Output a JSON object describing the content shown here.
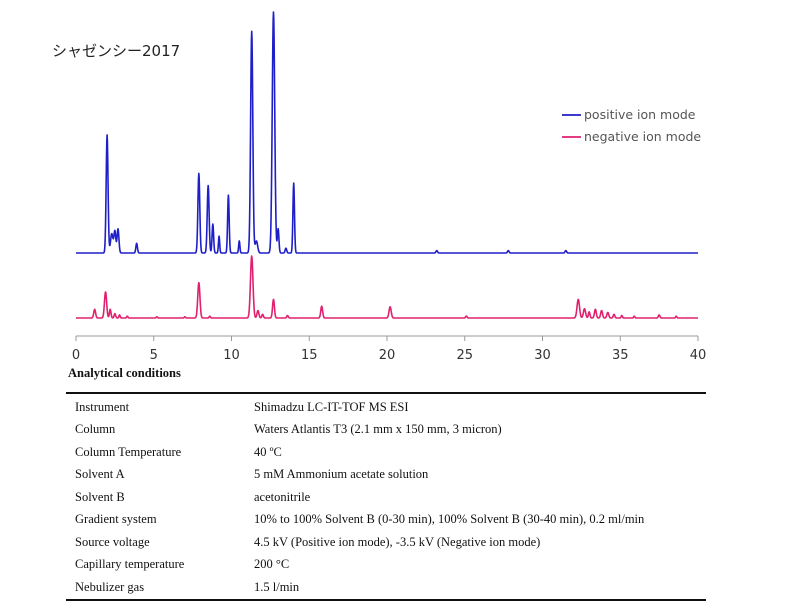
{
  "sample_title": "シャゼンシー2017",
  "chart_data": {
    "type": "line",
    "xlim": [
      0,
      40
    ],
    "xticks": [
      "0",
      "5",
      "10",
      "15",
      "20",
      "25",
      "30",
      "35",
      "40"
    ],
    "legend": {
      "placement": "top-right"
    },
    "grid": false,
    "series": [
      {
        "name": "positive ion mode",
        "color": "#1f1fc8",
        "baseline_pct": 0,
        "peaks": [
          [
            2.0,
            49,
            0.06
          ],
          [
            2.3,
            8,
            0.08
          ],
          [
            2.5,
            9,
            0.06
          ],
          [
            2.7,
            10,
            0.06
          ],
          [
            3.9,
            4,
            0.05
          ],
          [
            7.9,
            33,
            0.06
          ],
          [
            8.5,
            28,
            0.06
          ],
          [
            8.8,
            12,
            0.05
          ],
          [
            9.2,
            7,
            0.04
          ],
          [
            9.8,
            24,
            0.05
          ],
          [
            10.5,
            5,
            0.04
          ],
          [
            11.3,
            92,
            0.07
          ],
          [
            11.6,
            5,
            0.08
          ],
          [
            12.7,
            100,
            0.08
          ],
          [
            13.0,
            10,
            0.05
          ],
          [
            13.5,
            2,
            0.05
          ],
          [
            14.0,
            29,
            0.05
          ],
          [
            23.2,
            1,
            0.05
          ],
          [
            27.8,
            1,
            0.05
          ],
          [
            31.5,
            1,
            0.05
          ]
        ]
      },
      {
        "name": "negative ion mode",
        "color": "#e0206e",
        "peaks": [
          [
            1.2,
            14,
            0.06
          ],
          [
            1.9,
            42,
            0.07
          ],
          [
            2.2,
            14,
            0.05
          ],
          [
            2.5,
            7,
            0.05
          ],
          [
            2.8,
            5,
            0.04
          ],
          [
            3.3,
            3,
            0.04
          ],
          [
            5.2,
            2,
            0.04
          ],
          [
            7.0,
            2,
            0.04
          ],
          [
            7.9,
            57,
            0.07
          ],
          [
            8.6,
            3,
            0.04
          ],
          [
            11.3,
            100,
            0.08
          ],
          [
            11.7,
            12,
            0.06
          ],
          [
            12.0,
            6,
            0.05
          ],
          [
            12.7,
            30,
            0.06
          ],
          [
            13.6,
            4,
            0.05
          ],
          [
            15.8,
            19,
            0.06
          ],
          [
            20.2,
            18,
            0.07
          ],
          [
            25.1,
            3,
            0.05
          ],
          [
            32.3,
            30,
            0.08
          ],
          [
            32.7,
            15,
            0.07
          ],
          [
            33.0,
            10,
            0.05
          ],
          [
            33.4,
            14,
            0.06
          ],
          [
            33.8,
            12,
            0.06
          ],
          [
            34.2,
            9,
            0.06
          ],
          [
            34.6,
            6,
            0.05
          ],
          [
            35.1,
            4,
            0.04
          ],
          [
            35.9,
            3,
            0.04
          ],
          [
            37.5,
            5,
            0.05
          ],
          [
            38.6,
            3,
            0.04
          ]
        ]
      }
    ]
  },
  "conditions": {
    "heading": "Analytical conditions",
    "rows": [
      {
        "label": "Instrument",
        "value": "Shimadzu LC-IT-TOF MS ESI"
      },
      {
        "label": "Column",
        "value": "Waters Atlantis T3 (2.1 mm x 150 mm, 3 micron)"
      },
      {
        "label": "Column Temperature",
        "value": "40 ºC"
      },
      {
        "label": "Solvent A",
        "value": "5 mM Ammonium acetate solution"
      },
      {
        "label": "Solvent B",
        "value": "acetonitrile"
      },
      {
        "label": "Gradient system",
        "value": "10% to 100% Solvent B (0-30 min), 100% Solvent B (30-40 min), 0.2 ml/min"
      },
      {
        "label": "Source voltage",
        "value": "4.5 kV (Positive ion mode), -3.5 kV (Negative ion mode)"
      },
      {
        "label": "Capillary temperature",
        "value": "200 °C"
      },
      {
        "label": "Nebulizer gas",
        "value": "1.5 l/min"
      }
    ]
  }
}
